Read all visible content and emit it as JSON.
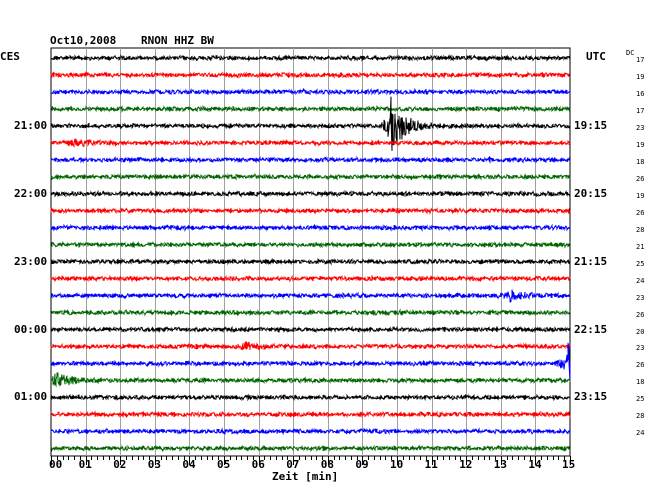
{
  "header": {
    "date": "Oct10,2008",
    "station": "RNON HHZ BW",
    "left_tz": "CES",
    "right_tz": "UTC",
    "dc_label": "DC"
  },
  "chart_data": {
    "type": "line",
    "title": "Oct10,2008   RNON HHZ BW",
    "xlabel": "Zeit [min]",
    "xlim": [
      0,
      15
    ],
    "x_ticks": [
      "00",
      "01",
      "02",
      "03",
      "04",
      "05",
      "06",
      "07",
      "08",
      "09",
      "10",
      "11",
      "12",
      "13",
      "14",
      "15"
    ],
    "trace_count": 24,
    "trace_colors": [
      "#000000",
      "#ff0000",
      "#0000ff",
      "#006400"
    ],
    "left_time_labels": [
      {
        "trace": 4,
        "text": "21:00"
      },
      {
        "trace": 8,
        "text": "22:00"
      },
      {
        "trace": 12,
        "text": "23:00"
      },
      {
        "trace": 16,
        "text": "00:00"
      },
      {
        "trace": 20,
        "text": "01:00"
      }
    ],
    "right_time_labels": [
      {
        "trace": 4,
        "text": "19:15"
      },
      {
        "trace": 8,
        "text": "20:15"
      },
      {
        "trace": 12,
        "text": "21:15"
      },
      {
        "trace": 16,
        "text": "22:15"
      },
      {
        "trace": 20,
        "text": "23:15"
      }
    ],
    "dc_offsets": [
      "17",
      "19",
      "16",
      "17",
      "23",
      "19",
      "18",
      "26",
      "19",
      "26",
      "28",
      "21",
      "25",
      "24",
      "23",
      "26",
      "20",
      "23",
      "26",
      "18",
      "25",
      "28",
      "24"
    ],
    "events": [
      {
        "trace": 4,
        "minute": 9.8,
        "amplitude": 30
      },
      {
        "trace": 5,
        "minute": 0.6,
        "amplitude": 3
      },
      {
        "trace": 14,
        "minute": 13.2,
        "amplitude": 6
      },
      {
        "trace": 17,
        "minute": 5.6,
        "amplitude": 4
      },
      {
        "trace": 18,
        "minute": 14.9,
        "amplitude": 22
      },
      {
        "trace": 19,
        "minute": 0.05,
        "amplitude": 8
      }
    ]
  }
}
